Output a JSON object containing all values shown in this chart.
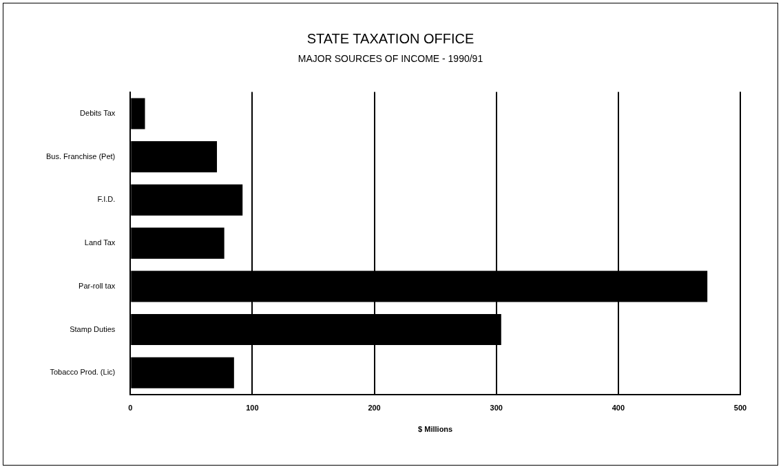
{
  "chart_data": {
    "type": "bar",
    "orientation": "horizontal",
    "title": "STATE TAXATION OFFICE",
    "subtitle": "MAJOR SOURCES OF INCOME - 1990/91",
    "xlabel": "$ Millions",
    "categories": [
      "Debits Tax",
      "Bus. Franchise (Pet)",
      "F.I.D.",
      "Land Tax",
      "Par-roll tax",
      "Stamp Duties",
      "Tobacco Prod. (Lic)"
    ],
    "values": [
      12,
      71,
      92,
      77,
      473,
      304,
      85
    ],
    "color": "#000000",
    "xlim": [
      0,
      500
    ],
    "xticks": [
      0,
      100,
      200,
      300,
      400,
      500
    ],
    "grid": "x",
    "legend": false
  }
}
